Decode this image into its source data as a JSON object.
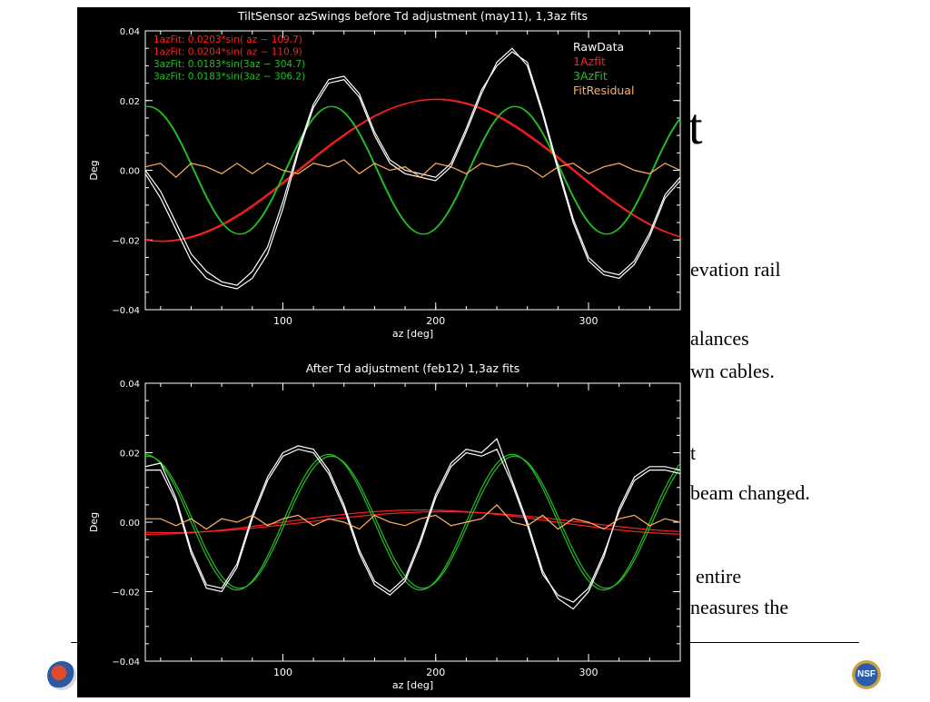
{
  "slide": {
    "title_fragment": "t",
    "text_fragments": [
      "evation rail",
      "alances",
      "wn cables.",
      "t",
      "beam changed.",
      "entire",
      "neasures the"
    ]
  },
  "chart_data": [
    {
      "type": "line",
      "title": "TiltSensor azSwings before Td adjustment (may11), 1,3az fits",
      "xlabel": "az [deg]",
      "ylabel": "Deg",
      "xlim": [
        10,
        360
      ],
      "ylim": [
        -0.04,
        0.04
      ],
      "xticks": [
        100,
        200,
        300
      ],
      "yticks": [
        -0.04,
        -0.02,
        0.0,
        0.02,
        0.04
      ],
      "ytick_labels": [
        "−0.04",
        "−0.02",
        "0.00",
        "0.02",
        "0.04"
      ],
      "annotations": [
        {
          "text": "1azFit: 0.0203*sin( az − 109.7)",
          "color": "#ff2020"
        },
        {
          "text": "1azFit: 0.0204*sin( az − 110.9)",
          "color": "#ff2020"
        },
        {
          "text": "3azFit: 0.0183*sin(3az − 304.7)",
          "color": "#22c022"
        },
        {
          "text": "3azFit: 0.0183*sin(3az − 306.2)",
          "color": "#22c022"
        }
      ],
      "legend": {
        "placement": "top-right",
        "entries": [
          {
            "label": "RawData",
            "color": "#ffffff"
          },
          {
            "label": "1Azfit",
            "color": "#ff2020"
          },
          {
            "label": "3AzFit",
            "color": "#22c022"
          },
          {
            "label": "FitResidual",
            "color": "#ffb060"
          }
        ]
      },
      "series": [
        {
          "color": "#ff2020",
          "role": "1az fit",
          "fit": {
            "amp": 0.0203,
            "harm": 1,
            "phase": 109.7
          }
        },
        {
          "color": "#ff2020",
          "role": "1az fit",
          "fit": {
            "amp": 0.0204,
            "harm": 1,
            "phase": 110.9
          }
        },
        {
          "color": "#22c022",
          "role": "3az fit",
          "fit": {
            "amp": 0.0183,
            "harm": 3,
            "phase": 304.7
          }
        },
        {
          "color": "#22c022",
          "role": "3az fit",
          "fit": {
            "amp": 0.0183,
            "harm": 3,
            "phase": 306.2
          }
        },
        {
          "color": "#ffffff",
          "role": "raw data",
          "x": [
            10,
            20,
            30,
            40,
            50,
            60,
            70,
            80,
            90,
            100,
            110,
            120,
            130,
            140,
            150,
            160,
            170,
            180,
            190,
            200,
            210,
            220,
            230,
            240,
            250,
            260,
            270,
            280,
            290,
            300,
            310,
            320,
            330,
            340,
            350,
            360
          ],
          "y": [
            -0.001,
            -0.008,
            -0.017,
            -0.026,
            -0.031,
            -0.033,
            -0.034,
            -0.031,
            -0.024,
            -0.011,
            0.005,
            0.018,
            0.025,
            0.026,
            0.021,
            0.01,
            0.002,
            -0.001,
            -0.002,
            -0.003,
            0.001,
            0.011,
            0.022,
            0.031,
            0.035,
            0.03,
            0.016,
            0.0,
            -0.015,
            -0.026,
            -0.03,
            -0.031,
            -0.027,
            -0.019,
            -0.008,
            -0.003
          ]
        },
        {
          "color": "#ffffff",
          "role": "raw data",
          "x": [
            10,
            20,
            30,
            40,
            50,
            60,
            70,
            80,
            90,
            100,
            110,
            120,
            130,
            140,
            150,
            160,
            170,
            180,
            190,
            200,
            210,
            220,
            230,
            240,
            250,
            260,
            270,
            280,
            290,
            300,
            310,
            320,
            330,
            340,
            350,
            360
          ],
          "y": [
            0.0,
            -0.006,
            -0.015,
            -0.024,
            -0.029,
            -0.032,
            -0.033,
            -0.029,
            -0.022,
            -0.009,
            0.006,
            0.019,
            0.026,
            0.027,
            0.022,
            0.011,
            0.003,
            0.0,
            -0.001,
            -0.002,
            0.002,
            0.012,
            0.023,
            0.03,
            0.034,
            0.031,
            0.017,
            0.001,
            -0.014,
            -0.025,
            -0.029,
            -0.03,
            -0.026,
            -0.018,
            -0.007,
            -0.002
          ]
        },
        {
          "color": "#ffb060",
          "role": "fit residual",
          "x": [
            10,
            20,
            30,
            40,
            50,
            60,
            70,
            80,
            90,
            100,
            110,
            120,
            130,
            140,
            150,
            160,
            170,
            180,
            190,
            200,
            210,
            220,
            230,
            240,
            250,
            260,
            270,
            280,
            290,
            300,
            310,
            320,
            330,
            340,
            350,
            360
          ],
          "y": [
            0.001,
            0.002,
            -0.002,
            0.002,
            0.001,
            -0.001,
            0.002,
            -0.001,
            0.002,
            0.0,
            -0.001,
            0.002,
            0.001,
            0.003,
            -0.001,
            0.002,
            0.0,
            0.001,
            -0.002,
            0.002,
            0.001,
            -0.001,
            0.002,
            0.001,
            0.002,
            0.001,
            -0.002,
            0.001,
            0.002,
            -0.001,
            0.001,
            0.002,
            0.0,
            -0.001,
            0.002,
            0.0
          ]
        }
      ]
    },
    {
      "type": "line",
      "title": "After Td adjustment (feb12) 1,3az fits",
      "xlabel": "az [deg]",
      "ylabel": "Deg",
      "xlim": [
        10,
        360
      ],
      "ylim": [
        -0.04,
        0.04
      ],
      "xticks": [
        100,
        200,
        300
      ],
      "yticks": [
        -0.04,
        -0.02,
        0.0,
        0.02,
        0.04
      ],
      "ytick_labels": [
        "−0.04",
        "−0.02",
        "0.00",
        "0.02",
        "0.04"
      ],
      "series": [
        {
          "color": "#ff2020",
          "role": "1az fit",
          "fit": {
            "amp": 0.0035,
            "harm": 1,
            "phase": 100
          }
        },
        {
          "color": "#ff2020",
          "role": "1az fit",
          "fit": {
            "amp": 0.003,
            "harm": 1,
            "phase": 115
          }
        },
        {
          "color": "#22c022",
          "role": "3az fit",
          "fit": {
            "amp": 0.0195,
            "harm": 3,
            "phase": 300
          }
        },
        {
          "color": "#22c022",
          "role": "3az fit",
          "fit": {
            "amp": 0.019,
            "harm": 3,
            "phase": 305
          }
        },
        {
          "color": "#ffffff",
          "role": "raw data",
          "x": [
            10,
            20,
            30,
            40,
            50,
            60,
            70,
            80,
            90,
            100,
            110,
            120,
            130,
            140,
            150,
            160,
            170,
            180,
            190,
            200,
            210,
            220,
            230,
            240,
            250,
            260,
            270,
            280,
            290,
            300,
            310,
            320,
            330,
            340,
            350,
            360
          ],
          "y": [
            0.016,
            0.017,
            0.007,
            -0.008,
            -0.018,
            -0.019,
            -0.012,
            0.002,
            0.013,
            0.02,
            0.022,
            0.021,
            0.015,
            0.005,
            -0.008,
            -0.017,
            -0.02,
            -0.016,
            -0.005,
            0.008,
            0.017,
            0.021,
            0.02,
            0.024,
            0.012,
            0.0,
            -0.014,
            -0.022,
            -0.025,
            -0.02,
            -0.01,
            0.004,
            0.013,
            0.016,
            0.016,
            0.015
          ]
        },
        {
          "color": "#ffffff",
          "role": "raw data",
          "x": [
            10,
            20,
            30,
            40,
            50,
            60,
            70,
            80,
            90,
            100,
            110,
            120,
            130,
            140,
            150,
            160,
            170,
            180,
            190,
            200,
            210,
            220,
            230,
            240,
            250,
            260,
            270,
            280,
            290,
            300,
            310,
            320,
            330,
            340,
            350,
            360
          ],
          "y": [
            0.015,
            0.015,
            0.006,
            -0.009,
            -0.019,
            -0.02,
            -0.013,
            0.001,
            0.012,
            0.019,
            0.021,
            0.02,
            0.014,
            0.004,
            -0.009,
            -0.018,
            -0.021,
            -0.017,
            -0.006,
            0.007,
            0.016,
            0.02,
            0.019,
            0.021,
            0.011,
            -0.001,
            -0.015,
            -0.021,
            -0.023,
            -0.019,
            -0.009,
            0.003,
            0.012,
            0.015,
            0.015,
            0.014
          ]
        },
        {
          "color": "#ffb060",
          "role": "fit residual",
          "x": [
            10,
            20,
            30,
            40,
            50,
            60,
            70,
            80,
            90,
            100,
            110,
            120,
            130,
            140,
            150,
            160,
            170,
            180,
            190,
            200,
            210,
            220,
            230,
            240,
            250,
            260,
            270,
            280,
            290,
            300,
            310,
            320,
            330,
            340,
            350,
            360
          ],
          "y": [
            0.001,
            0.001,
            -0.001,
            0.001,
            -0.002,
            0.001,
            0.0,
            0.002,
            -0.001,
            0.001,
            0.002,
            -0.001,
            0.001,
            0.0,
            -0.002,
            0.002,
            0.0,
            -0.001,
            0.001,
            0.002,
            -0.001,
            0.0,
            0.001,
            0.005,
            0.0,
            -0.001,
            0.002,
            -0.002,
            0.001,
            0.0,
            -0.002,
            0.001,
            0.002,
            -0.001,
            0.001,
            0.0
          ]
        }
      ]
    }
  ]
}
